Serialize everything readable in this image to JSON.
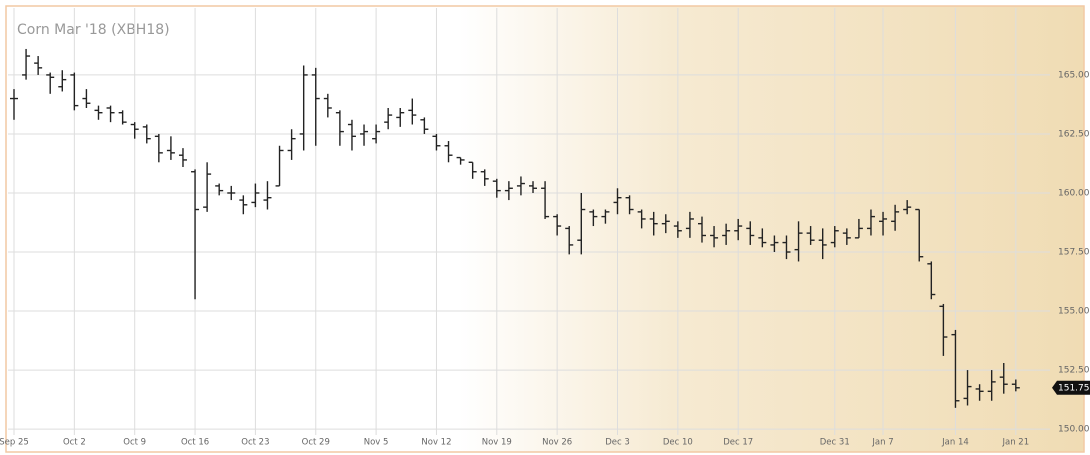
{
  "chart_data": {
    "type": "ohlc",
    "title": "Corn Mar '18 (XBH18)",
    "categories": [
      "Sep 25",
      null,
      null,
      null,
      null,
      "Oct 2",
      null,
      null,
      null,
      null,
      "Oct 9",
      null,
      null,
      null,
      null,
      "Oct 16",
      null,
      null,
      null,
      null,
      "Oct 23",
      null,
      null,
      null,
      null,
      "Oct 29",
      null,
      null,
      null,
      null,
      "Nov 5",
      null,
      null,
      null,
      null,
      "Nov 12",
      null,
      null,
      null,
      null,
      "Nov 19",
      null,
      null,
      null,
      null,
      "Nov 26",
      null,
      null,
      null,
      null,
      "Dec 3",
      null,
      null,
      null,
      null,
      "Dec 10",
      null,
      null,
      null,
      null,
      "Dec 17",
      null,
      null,
      null,
      null,
      null,
      null,
      null,
      "Dec 31",
      null,
      null,
      null,
      "Jan 7",
      null,
      null,
      null,
      null,
      null,
      "Jan 14",
      null,
      null,
      null,
      null,
      "Jan 21"
    ],
    "open": [
      164.0,
      165.0,
      165.5,
      165.0,
      164.5,
      165.0,
      164.0,
      163.5,
      163.6,
      163.4,
      162.9,
      162.8,
      162.4,
      161.8,
      161.6,
      160.9,
      159.4,
      160.3,
      160.0,
      159.7,
      159.6,
      159.7,
      160.3,
      161.8,
      162.5,
      165.0,
      164.0,
      163.4,
      162.9,
      162.5,
      162.3,
      163.0,
      163.2,
      163.5,
      163.1,
      162.4,
      162.0,
      161.5,
      161.3,
      160.9,
      160.5,
      160.1,
      160.3,
      160.3,
      160.2,
      159.0,
      158.5,
      158.0,
      159.2,
      159.0,
      159.6,
      159.8,
      159.2,
      158.9,
      158.7,
      158.6,
      158.5,
      158.7,
      158.2,
      158.2,
      158.4,
      158.5,
      158.1,
      157.8,
      157.9,
      157.6,
      158.3,
      158.0,
      157.9,
      158.3,
      158.1,
      158.5,
      158.8,
      158.8,
      159.3,
      159.3,
      157.0,
      155.2,
      154.0,
      151.3,
      151.7,
      151.6,
      152.2,
      151.9
    ],
    "high": [
      164.4,
      166.1,
      165.8,
      165.1,
      165.2,
      165.1,
      164.4,
      163.7,
      163.7,
      163.5,
      163.0,
      162.9,
      162.5,
      162.4,
      161.9,
      161.0,
      161.3,
      160.4,
      160.3,
      159.9,
      160.4,
      160.5,
      162.0,
      162.7,
      165.4,
      165.3,
      164.2,
      163.5,
      163.1,
      162.9,
      162.9,
      163.6,
      163.6,
      164.0,
      163.2,
      162.5,
      162.2,
      161.5,
      161.3,
      161.0,
      160.6,
      160.5,
      160.7,
      160.5,
      160.5,
      159.1,
      158.6,
      160.0,
      159.3,
      159.3,
      160.2,
      159.9,
      159.3,
      159.2,
      159.1,
      158.8,
      159.2,
      159.0,
      158.6,
      158.7,
      158.9,
      158.8,
      158.5,
      158.2,
      158.2,
      158.8,
      158.6,
      158.5,
      158.6,
      158.5,
      158.9,
      159.3,
      159.2,
      159.5,
      159.7,
      159.3,
      157.1,
      155.3,
      154.2,
      152.5,
      151.9,
      152.5,
      152.8,
      152.1
    ],
    "low": [
      163.1,
      164.8,
      165.0,
      164.2,
      164.3,
      163.5,
      163.6,
      163.1,
      163.0,
      162.9,
      162.3,
      162.1,
      161.3,
      161.4,
      161.1,
      155.5,
      159.2,
      159.9,
      159.7,
      159.1,
      159.4,
      159.3,
      160.3,
      161.4,
      161.8,
      162.0,
      163.2,
      162.0,
      161.8,
      162.0,
      162.1,
      162.7,
      162.8,
      162.9,
      162.5,
      161.8,
      161.3,
      161.2,
      160.6,
      160.3,
      159.8,
      159.7,
      159.9,
      160.0,
      158.9,
      158.2,
      157.4,
      157.4,
      158.6,
      158.7,
      159.1,
      159.1,
      158.5,
      158.2,
      158.3,
      158.1,
      158.1,
      157.9,
      157.7,
      157.8,
      158.0,
      157.8,
      157.7,
      157.5,
      157.2,
      157.1,
      157.8,
      157.2,
      157.7,
      157.8,
      158.1,
      158.2,
      158.2,
      158.4,
      159.1,
      157.1,
      155.5,
      153.1,
      150.9,
      151.0,
      151.2,
      151.2,
      151.5,
      151.6
    ],
    "close": [
      164.0,
      165.8,
      165.3,
      164.9,
      164.8,
      163.7,
      163.8,
      163.4,
      163.4,
      163.0,
      162.7,
      162.3,
      161.7,
      161.7,
      161.4,
      159.3,
      160.8,
      160.1,
      160.0,
      159.5,
      160.0,
      159.8,
      161.8,
      162.3,
      165.0,
      164.0,
      163.6,
      162.6,
      162.4,
      162.6,
      162.6,
      163.3,
      163.4,
      163.3,
      162.7,
      162.0,
      161.6,
      161.4,
      160.9,
      160.6,
      160.1,
      160.2,
      160.4,
      160.2,
      159.0,
      158.6,
      157.8,
      159.3,
      159.0,
      159.2,
      159.8,
      159.3,
      158.9,
      158.7,
      158.8,
      158.4,
      158.9,
      158.2,
      158.1,
      158.4,
      158.6,
      158.2,
      157.9,
      157.9,
      157.5,
      158.3,
      158.0,
      157.8,
      158.4,
      158.1,
      158.5,
      159.0,
      158.9,
      159.2,
      159.4,
      157.3,
      155.7,
      153.9,
      151.2,
      151.8,
      151.6,
      152.0,
      151.9,
      151.75
    ],
    "color": "#222222",
    "ylim": [
      149.75,
      167.75
    ],
    "yticks": [
      {
        "value": 150,
        "label": "150.00"
      },
      {
        "value": 152.5,
        "label": "152.50"
      },
      {
        "value": 155,
        "label": "155.00"
      },
      {
        "value": 157.5,
        "label": "157.50"
      },
      {
        "value": 160,
        "label": "160.00"
      },
      {
        "value": 162.5,
        "label": "162.50"
      },
      {
        "value": 165,
        "label": "165.00"
      }
    ],
    "last_price": {
      "value": 151.75,
      "label": "151.75"
    },
    "grid": true
  }
}
